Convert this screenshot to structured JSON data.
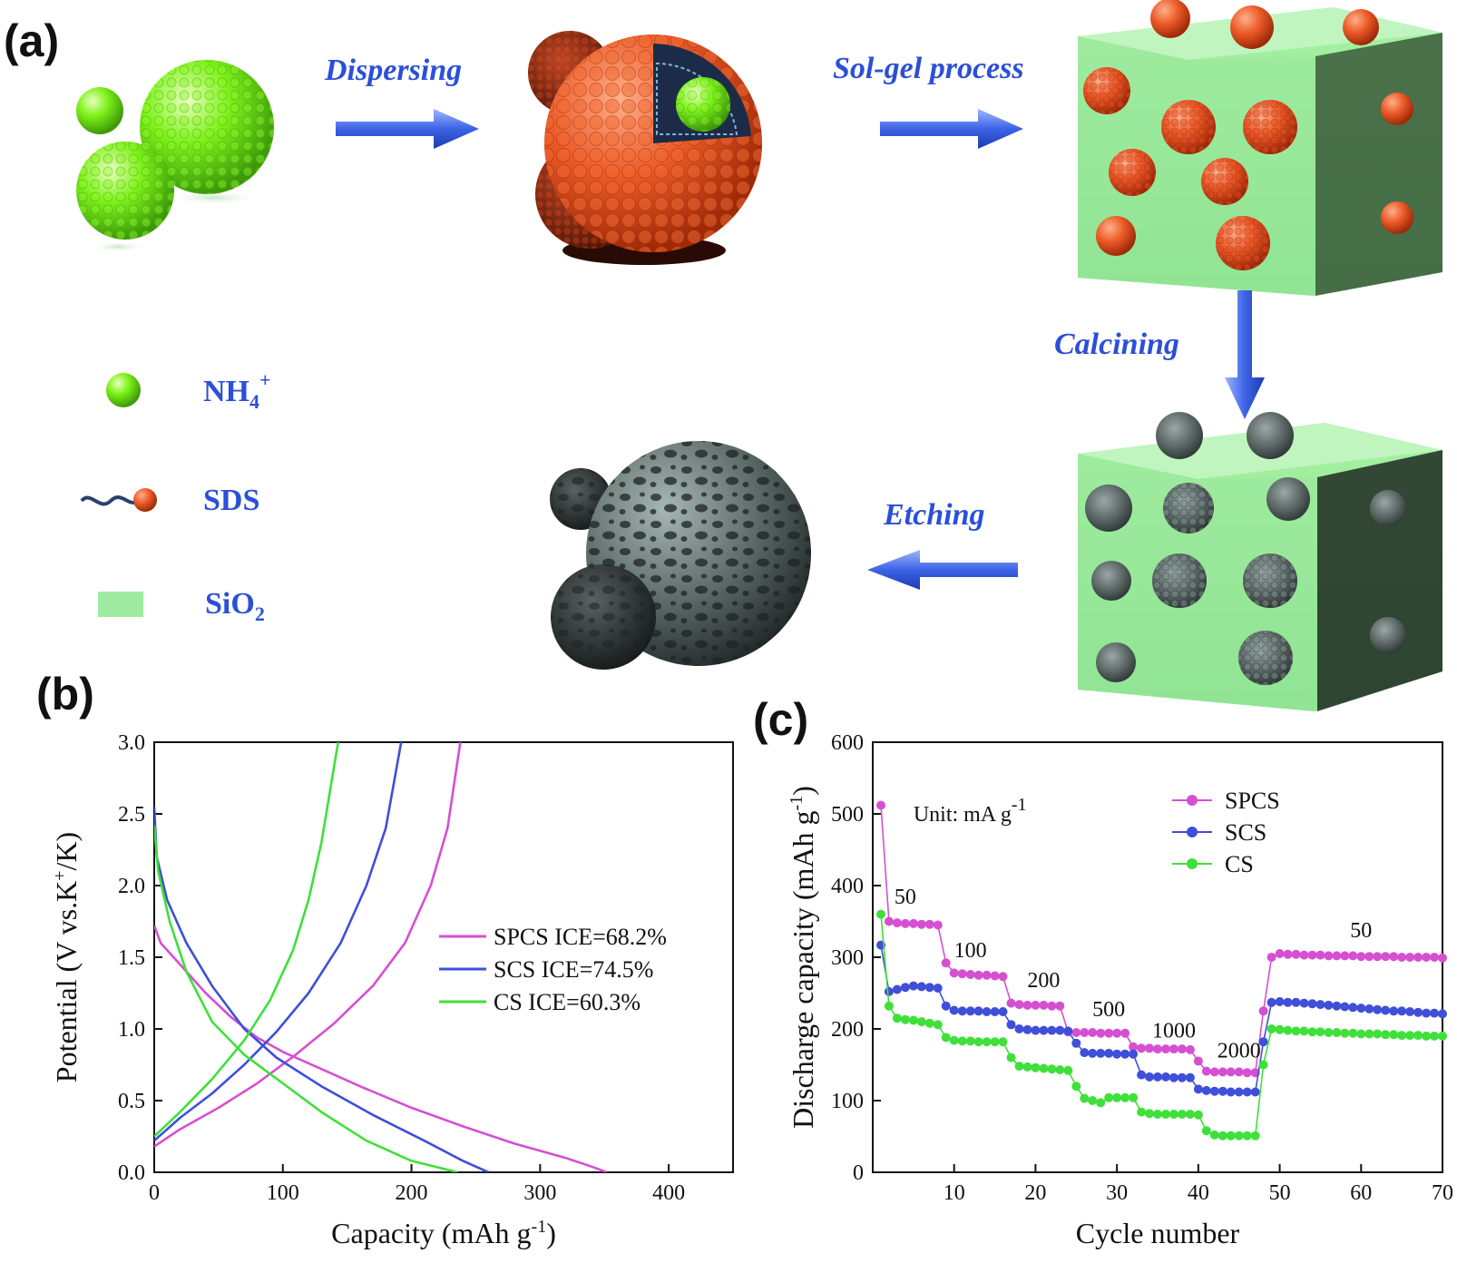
{
  "panel_a": {
    "label": "(a)",
    "steps": [
      "Dispersing",
      "Sol-gel process",
      "Calcining",
      "Etching"
    ],
    "legend": [
      {
        "name": "NH4+",
        "main": "NH",
        "sub": "4",
        "sup": "+",
        "icon": "green-sphere-icon",
        "color": "#7ef21a"
      },
      {
        "name": "SDS",
        "main": "SDS",
        "sub": "",
        "sup": "",
        "icon": "surfactant-icon",
        "color": "#e8471e"
      },
      {
        "name": "SiO2",
        "main": "SiO",
        "sub": "2",
        "sup": "",
        "icon": "silica-block-icon",
        "color": "#9eeaa0"
      }
    ]
  },
  "chart_data": [
    {
      "panel": "(b)",
      "type": "line",
      "xlabel": "Capacity (mAh g",
      "xlabel_sup": "-1",
      "xlabel_end": ")",
      "ylabel": "Potential (V vs.K",
      "ylabel_sup": "+",
      "ylabel_end": "/K)",
      "xlim": [
        0,
        450
      ],
      "ylim": [
        0,
        3.0
      ],
      "xticks": [
        "0",
        "100",
        "200",
        "300",
        "400"
      ],
      "yticks": [
        "0.0",
        "0.5",
        "1.0",
        "1.5",
        "2.0",
        "2.5",
        "3.0"
      ],
      "legend_position": "center-right",
      "series": [
        {
          "name": "SPCS  ICE=68.2%",
          "color": "#d64fd1",
          "discharge": [
            [
              0,
              1.72
            ],
            [
              5,
              1.6
            ],
            [
              20,
              1.45
            ],
            [
              40,
              1.25
            ],
            [
              60,
              1.08
            ],
            [
              80,
              0.94
            ],
            [
              100,
              0.84
            ],
            [
              130,
              0.72
            ],
            [
              160,
              0.6
            ],
            [
              200,
              0.45
            ],
            [
              240,
              0.32
            ],
            [
              280,
              0.2
            ],
            [
              320,
              0.1
            ],
            [
              340,
              0.04
            ],
            [
              352,
              0.0
            ]
          ],
          "charge": [
            [
              0,
              0.18
            ],
            [
              20,
              0.3
            ],
            [
              50,
              0.45
            ],
            [
              80,
              0.62
            ],
            [
              110,
              0.82
            ],
            [
              140,
              1.04
            ],
            [
              170,
              1.3
            ],
            [
              195,
              1.6
            ],
            [
              215,
              2.0
            ],
            [
              228,
              2.4
            ],
            [
              238,
              3.0
            ]
          ]
        },
        {
          "name": "SCS  ICE=74.5%",
          "color": "#3f4fd8",
          "discharge": [
            [
              0,
              2.55
            ],
            [
              2,
              2.2
            ],
            [
              10,
              1.9
            ],
            [
              25,
              1.6
            ],
            [
              45,
              1.3
            ],
            [
              70,
              1.0
            ],
            [
              95,
              0.8
            ],
            [
              130,
              0.6
            ],
            [
              170,
              0.4
            ],
            [
              210,
              0.22
            ],
            [
              240,
              0.08
            ],
            [
              260,
              0.0
            ]
          ],
          "charge": [
            [
              0,
              0.22
            ],
            [
              20,
              0.38
            ],
            [
              45,
              0.55
            ],
            [
              70,
              0.75
            ],
            [
              95,
              0.98
            ],
            [
              120,
              1.25
            ],
            [
              145,
              1.6
            ],
            [
              165,
              2.0
            ],
            [
              180,
              2.4
            ],
            [
              192,
              3.0
            ]
          ]
        },
        {
          "name": "CS  ICE=60.3%",
          "color": "#3fe03a",
          "discharge": [
            [
              0,
              2.42
            ],
            [
              3,
              2.1
            ],
            [
              12,
              1.75
            ],
            [
              25,
              1.4
            ],
            [
              45,
              1.05
            ],
            [
              70,
              0.82
            ],
            [
              100,
              0.62
            ],
            [
              130,
              0.42
            ],
            [
              165,
              0.22
            ],
            [
              200,
              0.08
            ],
            [
              236,
              0.0
            ]
          ],
          "charge": [
            [
              0,
              0.25
            ],
            [
              20,
              0.42
            ],
            [
              45,
              0.65
            ],
            [
              70,
              0.92
            ],
            [
              90,
              1.2
            ],
            [
              108,
              1.55
            ],
            [
              120,
              1.9
            ],
            [
              130,
              2.3
            ],
            [
              143,
              3.0
            ]
          ]
        }
      ]
    },
    {
      "panel": "(c)",
      "type": "scatter",
      "xlabel": "Cycle number",
      "ylabel": "Discharge capacity (mAh g",
      "ylabel_sup": "-1",
      "ylabel_end": ")",
      "xlim": [
        0,
        70
      ],
      "ylim": [
        0,
        600
      ],
      "xticks": [
        "10",
        "20",
        "30",
        "40",
        "50",
        "60",
        "70"
      ],
      "yticks": [
        "0",
        "100",
        "200",
        "300",
        "400",
        "500",
        "600"
      ],
      "legend_position": "top-right",
      "unit_note": "Unit: mA g",
      "unit_note_sup": "-1",
      "rate_labels": [
        {
          "text": "50",
          "cycle": 4,
          "capacity": 375
        },
        {
          "text": "100",
          "cycle": 12,
          "capacity": 300
        },
        {
          "text": "200",
          "cycle": 21,
          "capacity": 258
        },
        {
          "text": "500",
          "cycle": 29,
          "capacity": 218
        },
        {
          "text": "1000",
          "cycle": 37,
          "capacity": 188
        },
        {
          "text": "2000",
          "cycle": 45,
          "capacity": 160
        },
        {
          "text": "50",
          "cycle": 60,
          "capacity": 328
        }
      ],
      "cycles": [
        1,
        2,
        3,
        4,
        5,
        6,
        7,
        8,
        9,
        10,
        11,
        12,
        13,
        14,
        15,
        16,
        17,
        18,
        19,
        20,
        21,
        22,
        23,
        24,
        25,
        26,
        27,
        28,
        29,
        30,
        31,
        32,
        33,
        34,
        35,
        36,
        37,
        38,
        39,
        40,
        41,
        42,
        43,
        44,
        45,
        46,
        47,
        48,
        49,
        50,
        51,
        52,
        53,
        54,
        55,
        56,
        57,
        58,
        59,
        60,
        61,
        62,
        63,
        64,
        65,
        66,
        67,
        68,
        69,
        70
      ],
      "series": [
        {
          "name": "SPCS",
          "color": "#d64fd1",
          "values": [
            512,
            350,
            348,
            347,
            347,
            346,
            346,
            345,
            292,
            278,
            277,
            276,
            275,
            275,
            274,
            273,
            236,
            234,
            233,
            233,
            233,
            232,
            232,
            196,
            195,
            195,
            195,
            194,
            194,
            194,
            194,
            175,
            173,
            173,
            172,
            172,
            172,
            172,
            171,
            155,
            141,
            140,
            140,
            140,
            140,
            139,
            139,
            225,
            300,
            305,
            304,
            304,
            303,
            303,
            303,
            302,
            302,
            302,
            302,
            301,
            301,
            301,
            301,
            301,
            300,
            300,
            300,
            300,
            300,
            299
          ]
        },
        {
          "name": "SCS",
          "color": "#3f4fd8",
          "values": [
            317,
            252,
            255,
            258,
            260,
            259,
            258,
            257,
            232,
            226,
            225,
            225,
            225,
            224,
            224,
            224,
            206,
            200,
            199,
            198,
            198,
            198,
            198,
            197,
            180,
            167,
            166,
            166,
            166,
            165,
            165,
            165,
            136,
            133,
            133,
            133,
            132,
            132,
            132,
            116,
            114,
            113,
            113,
            112,
            112,
            112,
            112,
            182,
            237,
            238,
            237,
            237,
            236,
            235,
            234,
            233,
            232,
            231,
            230,
            229,
            228,
            227,
            226,
            225,
            225,
            224,
            223,
            222,
            222,
            221
          ]
        },
        {
          "name": "CS",
          "color": "#3fe03a",
          "values": [
            360,
            232,
            215,
            213,
            212,
            210,
            208,
            206,
            188,
            184,
            183,
            183,
            182,
            182,
            182,
            182,
            160,
            148,
            147,
            146,
            145,
            144,
            143,
            142,
            120,
            103,
            100,
            97,
            104,
            104,
            104,
            104,
            84,
            82,
            81,
            81,
            81,
            81,
            81,
            80,
            58,
            52,
            51,
            51,
            51,
            51,
            51,
            150,
            200,
            199,
            198,
            197,
            197,
            196,
            196,
            195,
            195,
            194,
            194,
            193,
            193,
            193,
            192,
            192,
            191,
            191,
            191,
            190,
            190,
            190
          ]
        }
      ]
    }
  ]
}
